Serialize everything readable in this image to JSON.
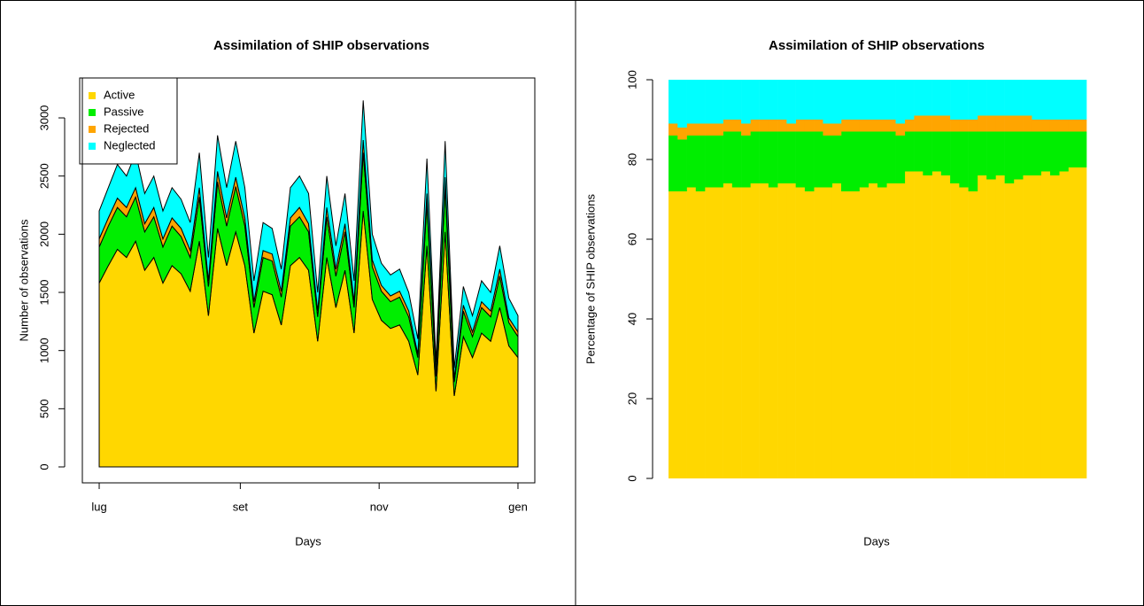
{
  "chart_data": [
    {
      "type": "area",
      "stacked": true,
      "title": "Assimilation of SHIP observations",
      "xlabel": "Days",
      "ylabel": "Number of observations",
      "x": [
        0,
        4,
        8,
        12,
        16,
        20,
        24,
        28,
        32,
        36,
        40,
        44,
        48,
        52,
        56,
        60,
        64,
        68,
        72,
        76,
        80,
        84,
        88,
        92,
        96,
        100,
        104,
        108,
        112,
        116,
        120,
        124,
        128,
        132,
        136,
        140,
        144,
        148,
        152,
        156,
        160,
        164,
        168,
        172,
        176,
        180,
        184
      ],
      "series": [
        {
          "name": "Active",
          "color": "#ffd700",
          "values": [
            1580,
            1730,
            1870,
            1800,
            1940,
            1690,
            1800,
            1580,
            1730,
            1660,
            1510,
            1940,
            1300,
            2050,
            1730,
            2020,
            1730,
            1150,
            1510,
            1480,
            1220,
            1730,
            1800,
            1690,
            1080,
            1800,
            1370,
            1690,
            1150,
            2200,
            1440,
            1260,
            1190,
            1220,
            1080,
            790,
            1900,
            650,
            2020,
            610,
            1120,
            940,
            1150,
            1080,
            1370,
            1040,
            940
          ]
        },
        {
          "name": "Passive",
          "color": "#00ee00",
          "values": [
            310,
            340,
            360,
            350,
            380,
            330,
            350,
            310,
            340,
            320,
            290,
            380,
            250,
            400,
            340,
            390,
            340,
            220,
            290,
            290,
            240,
            340,
            350,
            330,
            210,
            350,
            270,
            330,
            220,
            500,
            280,
            250,
            230,
            240,
            210,
            150,
            370,
            130,
            390,
            120,
            220,
            180,
            220,
            210,
            270,
            200,
            180
          ]
        },
        {
          "name": "Rejected",
          "color": "#ffa500",
          "values": [
            70,
            70,
            80,
            80,
            80,
            70,
            80,
            70,
            70,
            70,
            60,
            80,
            50,
            90,
            70,
            80,
            70,
            50,
            60,
            60,
            50,
            70,
            80,
            70,
            50,
            80,
            60,
            70,
            50,
            110,
            60,
            50,
            50,
            50,
            50,
            30,
            80,
            30,
            80,
            30,
            50,
            40,
            50,
            50,
            60,
            40,
            40
          ]
        },
        {
          "name": "Neglected",
          "color": "#00ffff",
          "values": [
            240,
            260,
            290,
            270,
            300,
            260,
            270,
            240,
            260,
            250,
            240,
            300,
            200,
            310,
            260,
            310,
            260,
            180,
            240,
            220,
            190,
            260,
            270,
            260,
            160,
            270,
            200,
            260,
            180,
            340,
            220,
            190,
            180,
            190,
            160,
            130,
            300,
            90,
            310,
            90,
            160,
            140,
            180,
            160,
            200,
            170,
            140
          ]
        }
      ],
      "xlim": [
        -7.4,
        191.4
      ],
      "xticks": [
        {
          "value": 0,
          "label": "lug"
        },
        {
          "value": 62,
          "label": "set"
        },
        {
          "value": 123,
          "label": "nov"
        },
        {
          "value": 184,
          "label": "gen"
        }
      ],
      "ylim": [
        -137,
        3343
      ],
      "yticks": [
        0,
        500,
        1000,
        1500,
        2000,
        2500,
        3000
      ],
      "legend": "top-left"
    },
    {
      "type": "bar",
      "stacked": true,
      "title": "Assimilation of SHIP observations",
      "xlabel": "Days",
      "ylabel": "Percentage of SHIP observations",
      "categories": [
        null,
        null,
        null,
        null,
        null,
        null,
        null,
        null,
        null,
        null,
        null,
        null,
        null,
        null,
        null,
        null,
        null,
        null,
        null,
        null,
        null,
        null,
        null,
        null,
        null,
        null,
        null,
        null,
        null,
        null,
        null,
        null,
        null,
        null,
        null,
        null,
        null,
        null,
        null,
        null,
        null,
        null,
        null,
        null,
        null,
        null
      ],
      "series": [
        {
          "name": "Active",
          "color": "#ffd700",
          "values": [
            72,
            72,
            73,
            72,
            73,
            73,
            74,
            73,
            73,
            74,
            74,
            73,
            74,
            74,
            73,
            72,
            73,
            73,
            74,
            72,
            72,
            73,
            74,
            73,
            74,
            74,
            77,
            77,
            76,
            77,
            76,
            74,
            73,
            72,
            76,
            75,
            76,
            74,
            75,
            76,
            76,
            77,
            76,
            77,
            78,
            78
          ]
        },
        {
          "name": "Passive",
          "color": "#00ee00",
          "values": [
            14,
            13,
            13,
            14,
            13,
            13,
            13,
            14,
            13,
            13,
            13,
            14,
            13,
            13,
            14,
            15,
            14,
            13,
            12,
            15,
            15,
            14,
            13,
            14,
            13,
            12,
            10,
            10,
            11,
            10,
            11,
            13,
            14,
            15,
            11,
            12,
            11,
            13,
            12,
            11,
            11,
            10,
            11,
            10,
            9,
            9
          ]
        },
        {
          "name": "Rejected",
          "color": "#ffa500",
          "values": [
            3,
            3,
            3,
            3,
            3,
            3,
            3,
            3,
            3,
            3,
            3,
            3,
            3,
            2,
            3,
            3,
            3,
            3,
            3,
            3,
            3,
            3,
            3,
            3,
            3,
            3,
            3,
            4,
            4,
            4,
            4,
            3,
            3,
            3,
            4,
            4,
            4,
            4,
            4,
            4,
            3,
            3,
            3,
            3,
            3,
            3
          ]
        },
        {
          "name": "Neglected",
          "color": "#00ffff",
          "values": [
            11,
            12,
            11,
            11,
            11,
            11,
            10,
            10,
            11,
            10,
            10,
            10,
            10,
            11,
            10,
            10,
            10,
            11,
            11,
            10,
            10,
            10,
            10,
            10,
            10,
            11,
            10,
            9,
            9,
            9,
            9,
            10,
            10,
            10,
            9,
            9,
            9,
            9,
            9,
            9,
            10,
            10,
            10,
            10,
            10,
            10
          ]
        }
      ],
      "ylim": [
        0,
        100
      ],
      "yticks": [
        0,
        20,
        40,
        60,
        80,
        100
      ]
    }
  ]
}
